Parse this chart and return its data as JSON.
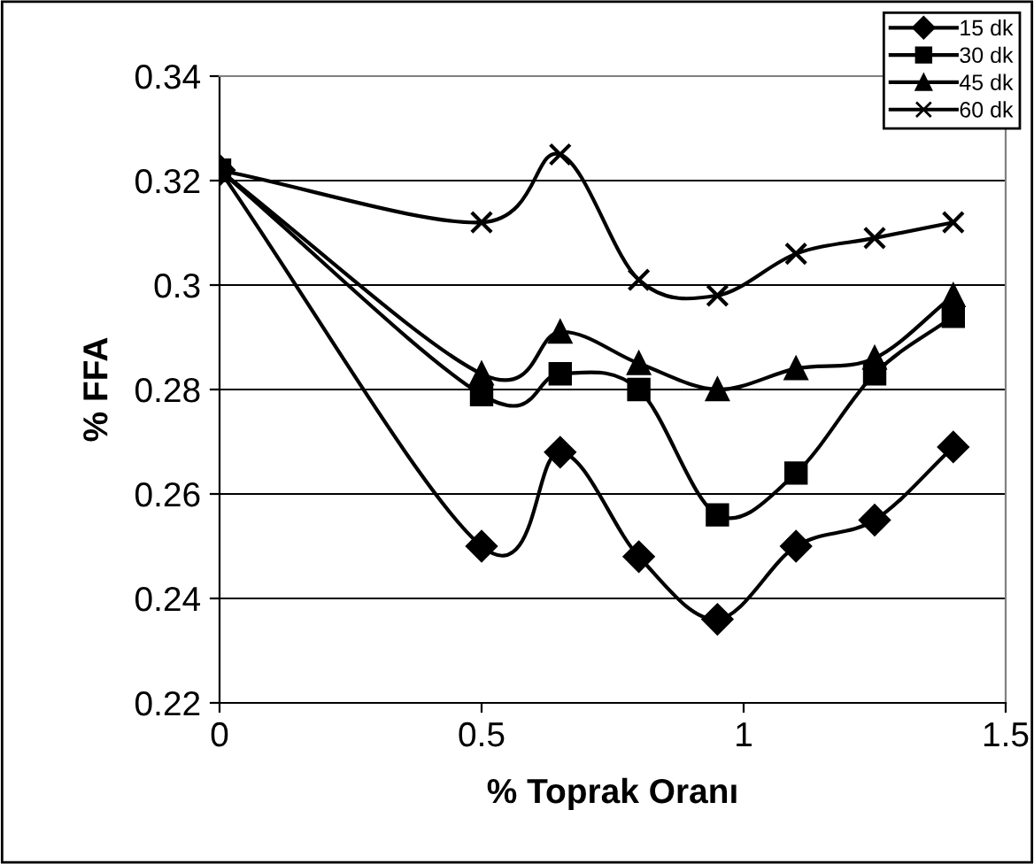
{
  "chart_data": {
    "type": "line",
    "xlabel": "% Toprak Oranı",
    "ylabel": "% FFA",
    "x": [
      0,
      0.5,
      0.65,
      0.8,
      0.95,
      1.1,
      1.25,
      1.4
    ],
    "series": [
      {
        "name": "15 dk",
        "color": "#000000",
        "marker": "diamond",
        "values": [
          0.322,
          0.25,
          0.268,
          0.248,
          0.236,
          0.25,
          0.255,
          0.269
        ]
      },
      {
        "name": "30 dk",
        "color": "#000000",
        "marker": "square",
        "values": [
          0.322,
          0.279,
          0.283,
          0.28,
          0.256,
          0.264,
          0.283,
          0.294
        ]
      },
      {
        "name": "45 dk",
        "color": "#000000",
        "marker": "triangle",
        "values": [
          0.322,
          0.283,
          0.291,
          0.285,
          0.28,
          0.284,
          0.286,
          0.298
        ]
      },
      {
        "name": "60 dk",
        "color": "#000000",
        "marker": "cross",
        "values": [
          0.322,
          0.312,
          0.325,
          0.301,
          0.298,
          0.306,
          0.309,
          0.312
        ]
      }
    ],
    "xlim": [
      0,
      1.5
    ],
    "xticks": [
      0,
      0.5,
      1,
      1.5
    ],
    "ylim": [
      0.22,
      0.34
    ],
    "yticks": [
      0.22,
      0.24,
      0.26,
      0.28,
      0.3,
      0.32,
      0.34
    ],
    "grid": "y",
    "legend": "top right",
    "line_style": "solid"
  }
}
